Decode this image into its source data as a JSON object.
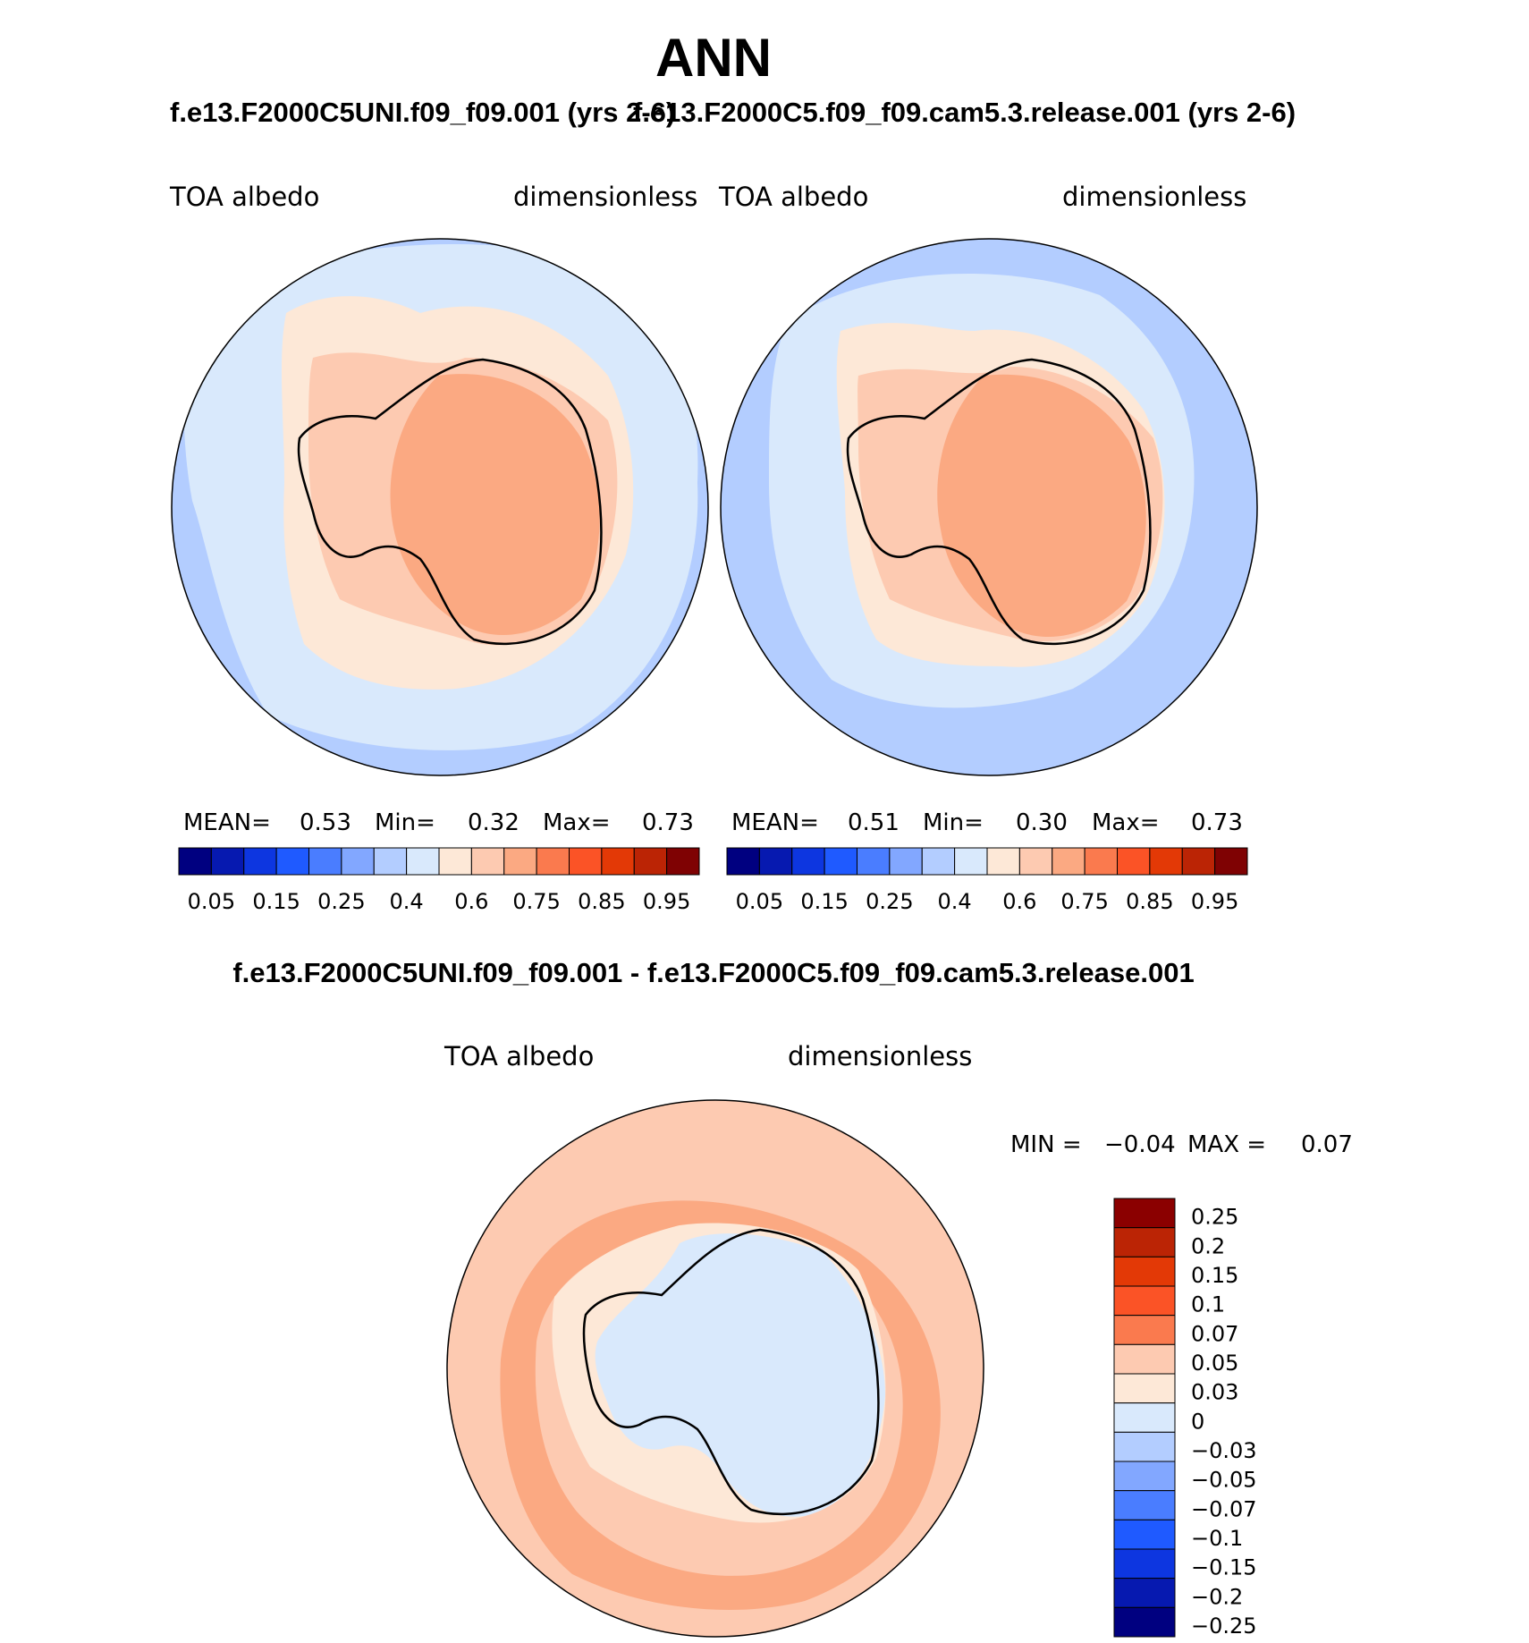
{
  "header": {
    "title": "ANN"
  },
  "panels": [
    {
      "case_title": "f.e13.F2000C5UNI.f09_f09.001 (yrs 2-6)",
      "variable": "TOA albedo",
      "units": "dimensionless",
      "stats": {
        "mean_label": "MEAN=",
        "mean": "0.53",
        "min_label": "Min=",
        "min": "0.32",
        "max_label": "Max=",
        "max": "0.73"
      }
    },
    {
      "case_title": "f.e13.F2000C5.f09_f09.cam5.3.release.001 (yrs 2-6)",
      "variable": "TOA albedo",
      "units": "dimensionless",
      "stats": {
        "mean_label": "MEAN=",
        "mean": "0.51",
        "min_label": "Min=",
        "min": "0.30",
        "max_label": "Max=",
        "max": "0.73"
      }
    }
  ],
  "diff": {
    "title": "f.e13.F2000C5UNI.f09_f09.001 - f.e13.F2000C5.f09_f09.cam5.3.release.001",
    "variable": "TOA albedo",
    "units": "dimensionless",
    "min_label": "MIN =",
    "min": "−0.04",
    "max_label": "MAX =",
    "max": "0.07"
  },
  "chart_data": [
    {
      "type": "heatmap",
      "title": "f.e13.F2000C5UNI.f09_f09.001 (yrs 2-6)",
      "projection": "south polar stereographic",
      "variable": "TOA albedo",
      "units": "dimensionless",
      "mean": 0.53,
      "min": 0.32,
      "max": 0.73,
      "colorbar_labels": [
        "0.05",
        "0.15",
        "0.25",
        "0.4",
        "0.6",
        "0.75",
        "0.85",
        "0.95"
      ],
      "colors": [
        "#000080",
        "#0619b0",
        "#0d36e0",
        "#1f5aff",
        "#4a7dff",
        "#82a7ff",
        "#b3cdff",
        "#d9e9fc",
        "#fde8d7",
        "#fdcab1",
        "#fba982",
        "#fa7a4e",
        "#fb5326",
        "#e33906",
        "#bb2405",
        "#7f0203"
      ]
    },
    {
      "type": "heatmap",
      "title": "f.e13.F2000C5.f09_f09.cam5.3.release.001 (yrs 2-6)",
      "projection": "south polar stereographic",
      "variable": "TOA albedo",
      "units": "dimensionless",
      "mean": 0.51,
      "min": 0.3,
      "max": 0.73,
      "colorbar_labels": [
        "0.05",
        "0.15",
        "0.25",
        "0.4",
        "0.6",
        "0.75",
        "0.85",
        "0.95"
      ],
      "colors": [
        "#000080",
        "#0619b0",
        "#0d36e0",
        "#1f5aff",
        "#4a7dff",
        "#82a7ff",
        "#b3cdff",
        "#d9e9fc",
        "#fde8d7",
        "#fdcab1",
        "#fba982",
        "#fa7a4e",
        "#fb5326",
        "#e33906",
        "#bb2405",
        "#7f0203"
      ]
    },
    {
      "type": "heatmap",
      "title": "f.e13.F2000C5UNI.f09_f09.001 - f.e13.F2000C5.f09_f09.cam5.3.release.001",
      "projection": "south polar stereographic",
      "variable": "TOA albedo",
      "units": "dimensionless",
      "min": -0.04,
      "max": 0.07,
      "colorbar_labels": [
        "0.25",
        "0.2",
        "0.15",
        "0.1",
        "0.07",
        "0.05",
        "0.03",
        "0",
        "−0.03",
        "−0.05",
        "−0.07",
        "−0.1",
        "−0.15",
        "−0.2",
        "−0.25"
      ],
      "colors": [
        "#8b0000",
        "#bb2405",
        "#e33906",
        "#fb5326",
        "#fa7a4e",
        "#fdcab1",
        "#fde8d7",
        "#d9e9fc",
        "#b3cdff",
        "#82a7ff",
        "#4a7dff",
        "#1f5aff",
        "#0d36e0",
        "#0619b0",
        "#000080"
      ]
    }
  ]
}
